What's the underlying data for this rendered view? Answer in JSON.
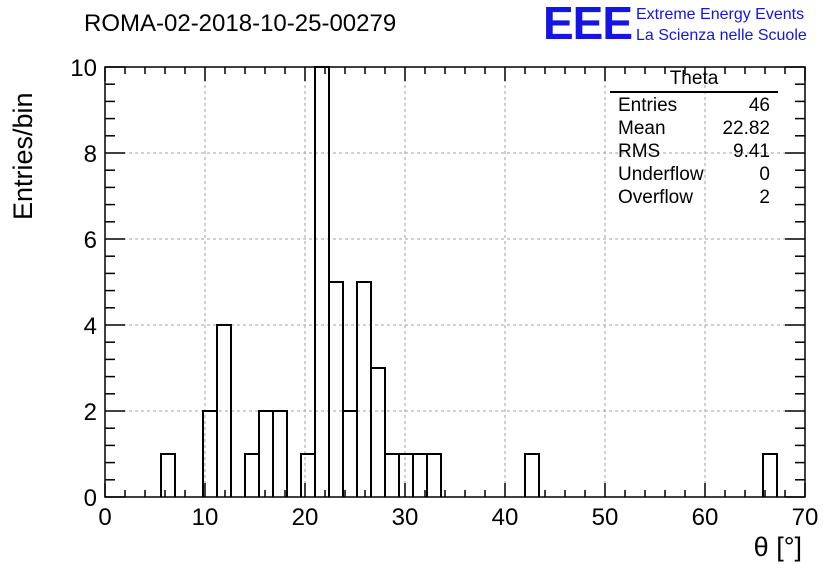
{
  "header": {
    "title": "ROMA-02-2018-10-25-00279",
    "logo_text": "EEE",
    "logo_line1": "Extreme Energy Events",
    "logo_line2": "La Scienza nelle Scuole"
  },
  "stats_box": {
    "title": "Theta",
    "rows": [
      {
        "label": "Entries",
        "value": "46"
      },
      {
        "label": "Mean",
        "value": "22.82"
      },
      {
        "label": "RMS",
        "value": "9.41"
      },
      {
        "label": "Underflow",
        "value": "0"
      },
      {
        "label": "Overflow",
        "value": "2"
      }
    ]
  },
  "colors": {
    "logo": "#1414e6",
    "grid": "#a0a0a0",
    "line": "#000000"
  },
  "chart_data": {
    "type": "bar",
    "title": "ROMA-02-2018-10-25-00279",
    "xlabel": "θ [°]",
    "ylabel": "Entries/bin",
    "xlim": [
      0,
      70
    ],
    "ylim": [
      0,
      10
    ],
    "grid": true,
    "bin_width": 1.4,
    "x_ticks": [
      0,
      10,
      20,
      30,
      40,
      50,
      60,
      70
    ],
    "y_ticks": [
      0,
      2,
      4,
      6,
      8,
      10
    ],
    "bins": [
      {
        "x": 5.6,
        "y": 1
      },
      {
        "x": 9.8,
        "y": 2
      },
      {
        "x": 11.2,
        "y": 4
      },
      {
        "x": 14.0,
        "y": 1
      },
      {
        "x": 15.4,
        "y": 2
      },
      {
        "x": 16.8,
        "y": 2
      },
      {
        "x": 19.6,
        "y": 1
      },
      {
        "x": 21.0,
        "y": 10
      },
      {
        "x": 22.4,
        "y": 5
      },
      {
        "x": 23.8,
        "y": 2
      },
      {
        "x": 25.2,
        "y": 5
      },
      {
        "x": 26.6,
        "y": 3
      },
      {
        "x": 28.0,
        "y": 1
      },
      {
        "x": 29.4,
        "y": 1
      },
      {
        "x": 30.8,
        "y": 1
      },
      {
        "x": 32.2,
        "y": 1
      },
      {
        "x": 42.0,
        "y": 1
      },
      {
        "x": 65.8,
        "y": 1
      }
    ]
  }
}
